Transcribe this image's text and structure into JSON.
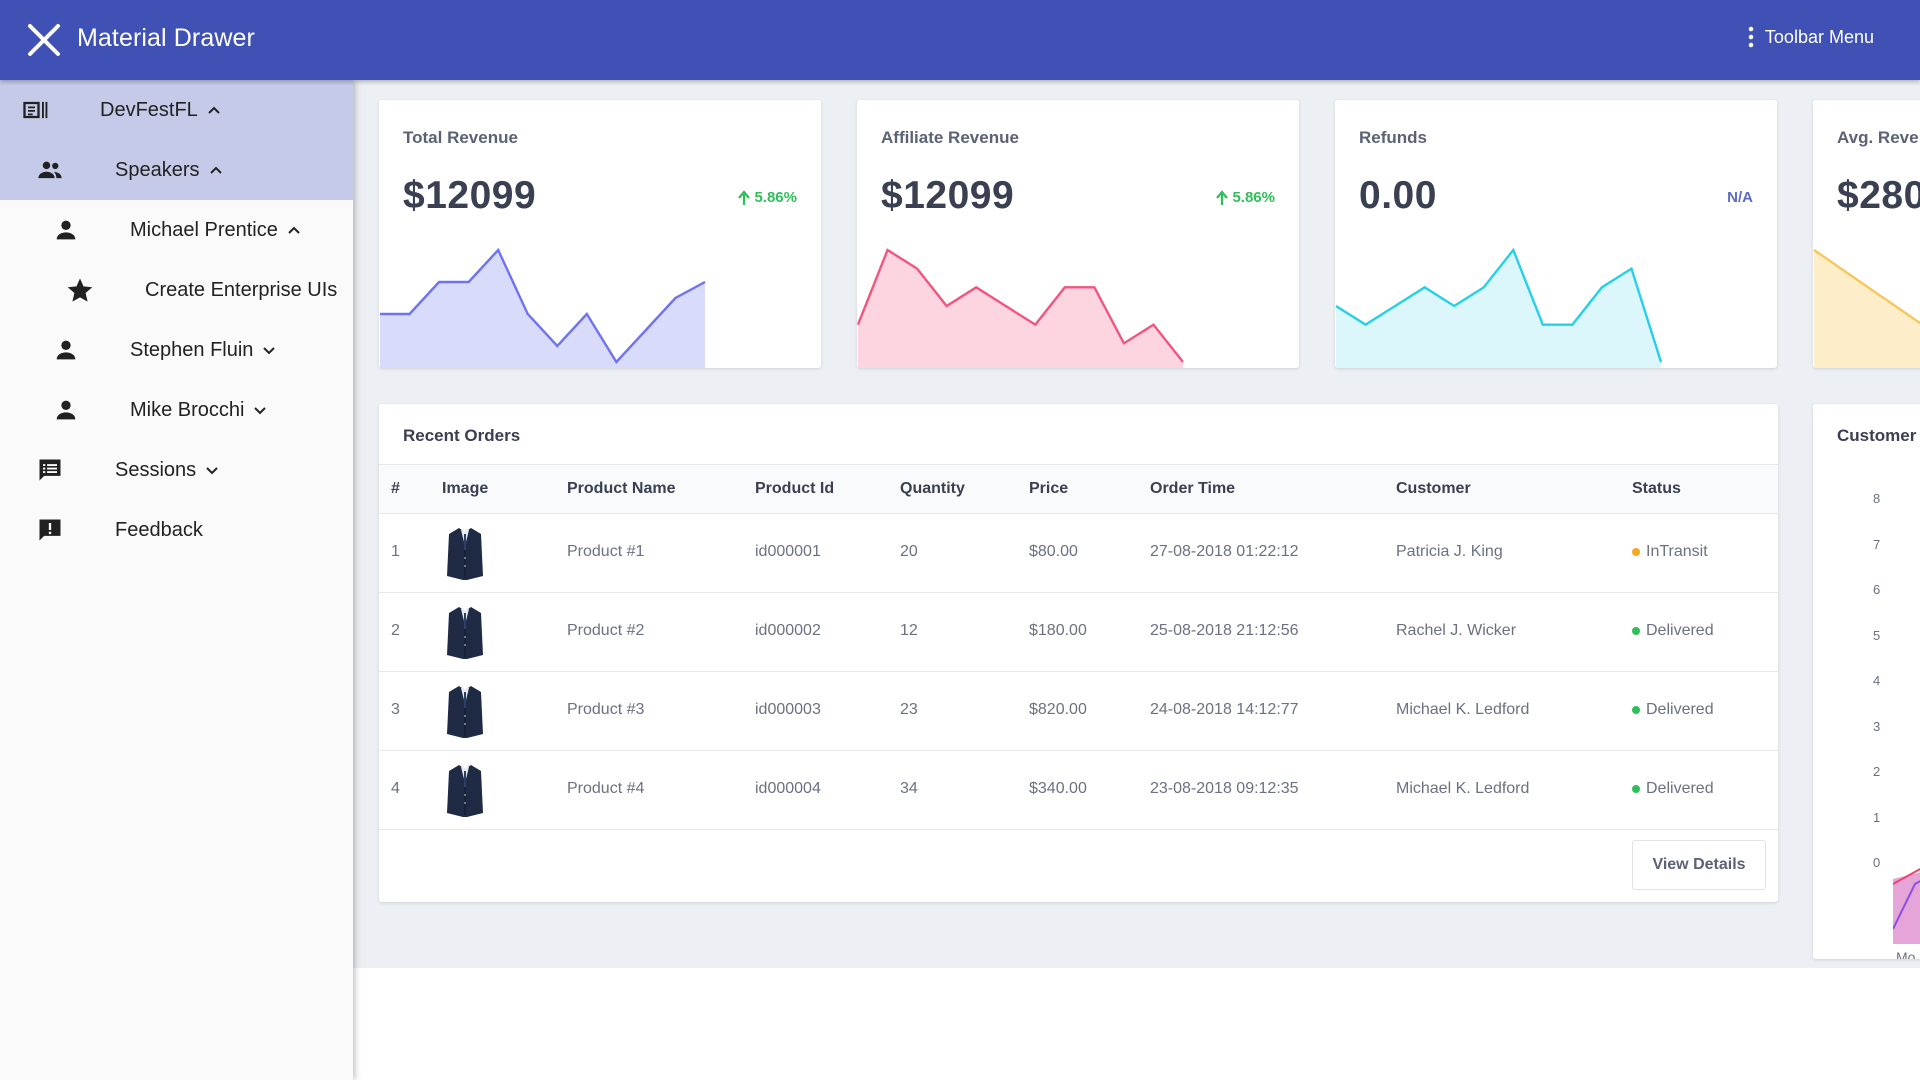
{
  "toolbar": {
    "title": "Material Drawer",
    "menu_label": "Toolbar Menu",
    "color": "#3f51b5"
  },
  "sidebar": {
    "items": [
      {
        "label": "DevFestFL",
        "icon": "contact-card-icon",
        "expanded": true,
        "active": true
      },
      {
        "label": "Speakers",
        "icon": "people-icon",
        "expanded": true,
        "active": true
      },
      {
        "label": "Michael Prentice",
        "icon": "person-icon",
        "expanded": true
      },
      {
        "label": "Create Enterprise UIs",
        "icon": "star-icon"
      },
      {
        "label": "Stephen Fluin",
        "icon": "person-icon",
        "expanded": false
      },
      {
        "label": "Mike Brocchi",
        "icon": "person-icon",
        "expanded": false
      },
      {
        "label": "Sessions",
        "icon": "notes-icon",
        "expanded": false
      },
      {
        "label": "Feedback",
        "icon": "feedback-icon"
      }
    ]
  },
  "stats": [
    {
      "title": "Total Revenue",
      "value": "$12099",
      "change": "5.86%",
      "change_color": "#2fbf5a",
      "line_color": "#6f73f2",
      "fill_color": "#d9dbfb",
      "chart_data": {
        "type": "area",
        "y": [
          2,
          2,
          4,
          4,
          6,
          2,
          0,
          2,
          -1,
          1,
          3,
          4
        ]
      }
    },
    {
      "title": "Affiliate Revenue",
      "value": "$12099",
      "change": "5.86%",
      "change_color": "#2fbf5a",
      "line_color": "#f2557f",
      "fill_color": "#fdd5e1",
      "chart_data": {
        "type": "area",
        "y": [
          1,
          5,
          4,
          2,
          3,
          2,
          1,
          3,
          3,
          0,
          1,
          -1
        ]
      }
    },
    {
      "title": "Refunds",
      "value": "0.00",
      "change": "N/A",
      "change_color": "#5c6bc0",
      "line_color": "#26d0e6",
      "fill_color": "#dcf7fb",
      "chart_data": {
        "type": "area",
        "y": [
          2,
          1,
          2,
          3,
          2,
          3,
          5,
          1,
          1,
          3,
          4,
          -1
        ]
      }
    },
    {
      "title": "Avg. Reve",
      "value": "$280",
      "line_color": "#f5c75c",
      "fill_color": "#fdeec9",
      "chart_data": {
        "type": "area",
        "y": [
          3,
          2,
          1,
          2,
          1
        ]
      }
    }
  ],
  "orders": {
    "title": "Recent Orders",
    "columns": [
      "#",
      "Image",
      "Product Name",
      "Product Id",
      "Quantity",
      "Price",
      "Order Time",
      "Customer",
      "Status"
    ],
    "rows": [
      {
        "num": "1",
        "name": "Product #1",
        "id": "id000001",
        "qty": "20",
        "price": "$80.00",
        "time": "27-08-2018 01:22:12",
        "customer": "Patricia J. King",
        "status": "InTransit",
        "status_color": "#f5a623"
      },
      {
        "num": "2",
        "name": "Product #2",
        "id": "id000002",
        "qty": "12",
        "price": "$180.00",
        "time": "25-08-2018 21:12:56",
        "customer": "Rachel J. Wicker",
        "status": "Delivered",
        "status_color": "#2fbf5a"
      },
      {
        "num": "3",
        "name": "Product #3",
        "id": "id000003",
        "qty": "23",
        "price": "$820.00",
        "time": "24-08-2018 14:12:77",
        "customer": "Michael K. Ledford",
        "status": "Delivered",
        "status_color": "#2fbf5a"
      },
      {
        "num": "4",
        "name": "Product #4",
        "id": "id000004",
        "qty": "34",
        "price": "$340.00",
        "time": "23-08-2018 09:12:35",
        "customer": "Michael K. Ledford",
        "status": "Delivered",
        "status_color": "#2fbf5a"
      }
    ],
    "view_details": "View Details"
  },
  "customers": {
    "title": "Customer",
    "y_ticks": [
      "8",
      "7",
      "6",
      "5",
      "4",
      "3",
      "2",
      "1",
      "0"
    ],
    "x_label": "Mo"
  }
}
